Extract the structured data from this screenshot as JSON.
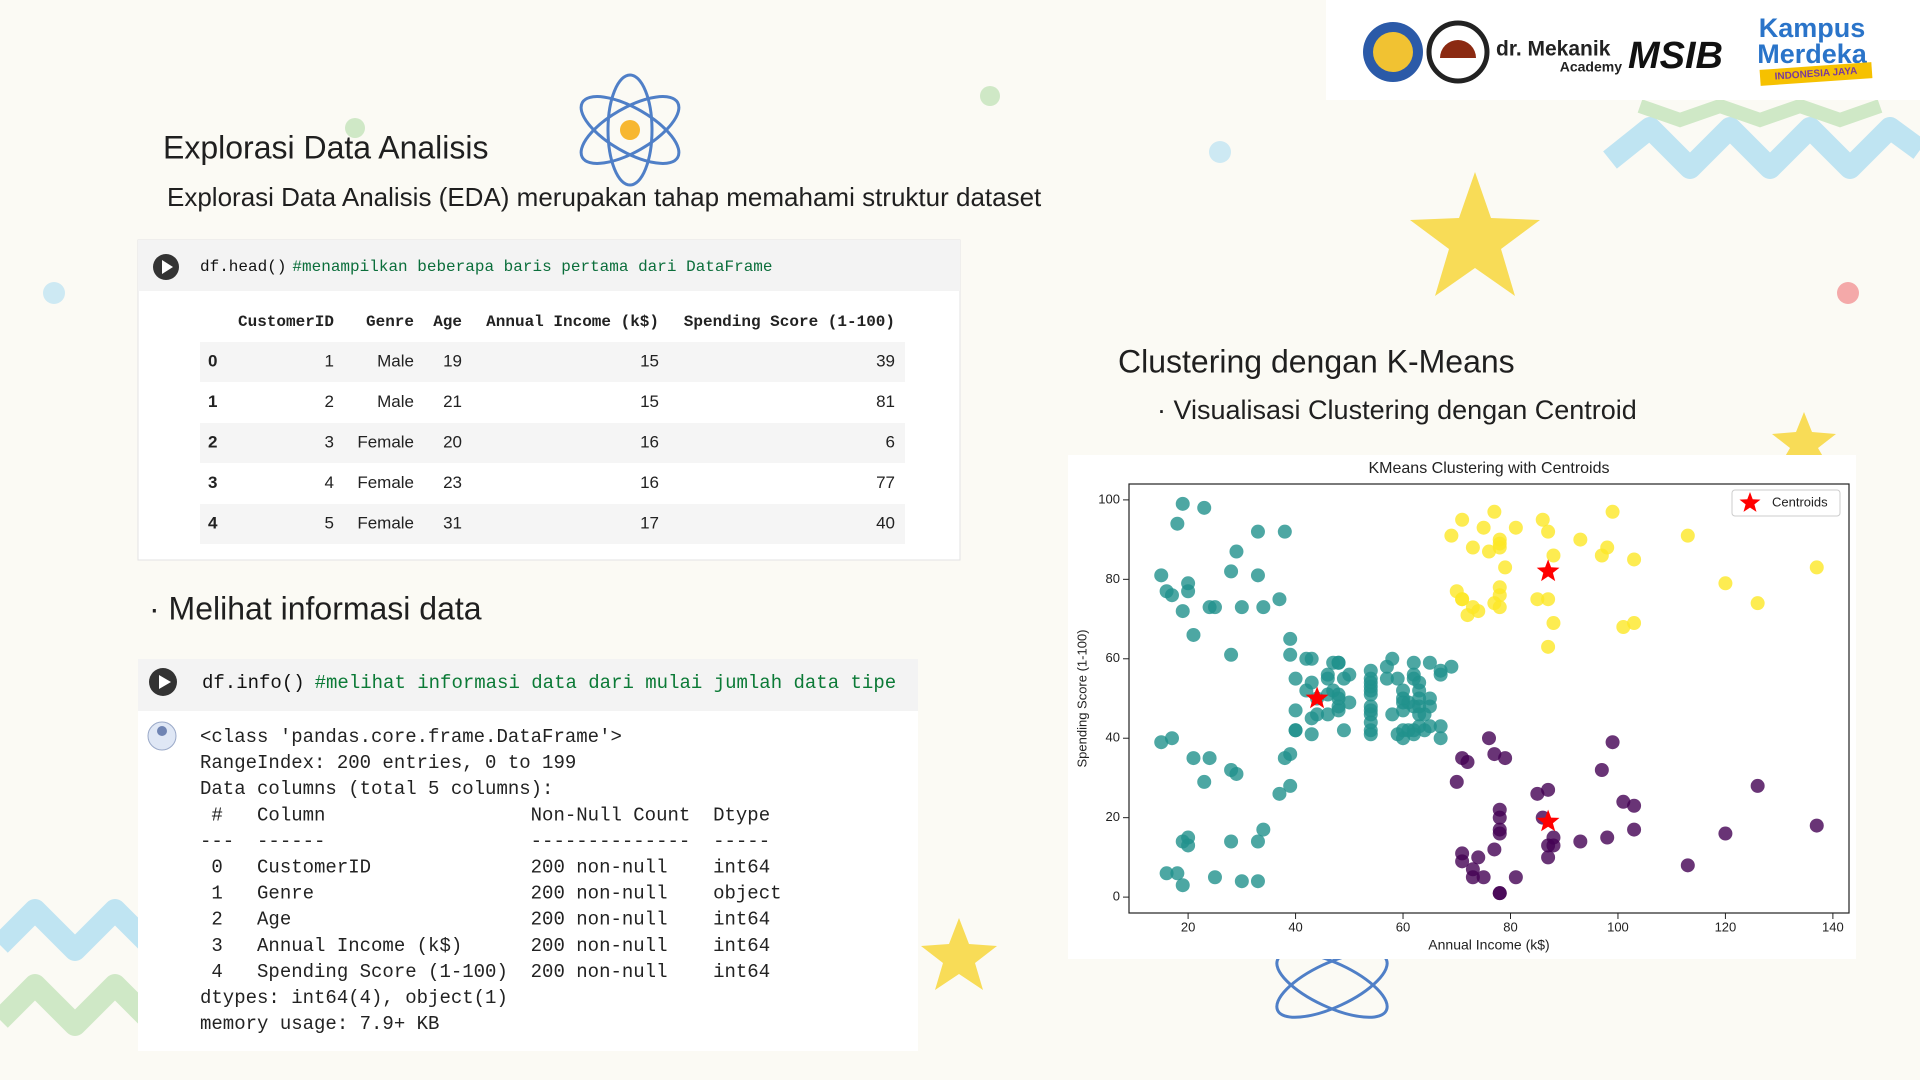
{
  "logos": {
    "brand": "dr. Mekanik",
    "brand_sub": "Academy",
    "msib": "MSIB",
    "kampus": "Kampus",
    "merdeka": "Merdeka",
    "tagline": "INDONESIA JAYA"
  },
  "eda": {
    "title": "Explorasi Data Analisis",
    "subtitle": "Explorasi Data Analisis (EDA) merupakan tahap memahami struktur dataset",
    "cell1": {
      "code": "df.head()",
      "comment": "#menampilkan beberapa baris pertama dari DataFrame"
    },
    "table": {
      "columns": [
        "CustomerID",
        "Genre",
        "Age",
        "Annual Income (k$)",
        "Spending Score (1-100)"
      ],
      "rows": [
        [
          0,
          1,
          "Male",
          19,
          15,
          39
        ],
        [
          1,
          2,
          "Male",
          21,
          15,
          81
        ],
        [
          2,
          3,
          "Female",
          20,
          16,
          6
        ],
        [
          3,
          4,
          "Female",
          23,
          16,
          77
        ],
        [
          4,
          5,
          "Female",
          31,
          17,
          40
        ]
      ]
    },
    "info_heading": "· Melihat informasi data",
    "cell2": {
      "code": "df.info()",
      "comment": "#melihat informasi data dari mulai jumlah data tipe",
      "output": [
        "<class 'pandas.core.frame.DataFrame'>",
        "RangeIndex: 200 entries, 0 to 199",
        "Data columns (total 5 columns):",
        " #   Column                  Non-Null Count  Dtype",
        "---  ------                  --------------  -----",
        " 0   CustomerID              200 non-null    int64",
        " 1   Genre                   200 non-null    object",
        " 2   Age                     200 non-null    int64",
        " 3   Annual Income (k$)      200 non-null    int64",
        " 4   Spending Score (1-100)  200 non-null    int64",
        "dtypes: int64(4), object(1)",
        "memory usage: 7.9+ KB"
      ]
    }
  },
  "clustering": {
    "title": "Clustering dengan K-Means",
    "subtitle": "· Visualisasi Clustering dengan Centroid"
  },
  "chart_data": {
    "type": "scatter",
    "title": "KMeans Clustering with Centroids",
    "x_label": "Annual Income (k$)",
    "y_label": "Spending Score (1-100)",
    "xlim": [
      9,
      143
    ],
    "ylim": [
      -4,
      104
    ],
    "xticks": [
      20,
      40,
      60,
      80,
      100,
      120,
      140
    ],
    "yticks": [
      0,
      20,
      40,
      60,
      80,
      100
    ],
    "legend": "upper right",
    "series": [
      {
        "color": "#21918c",
        "marker": "circle",
        "x": [
          15,
          15,
          16,
          16,
          17,
          17,
          18,
          18,
          19,
          19,
          19,
          19,
          20,
          20,
          20,
          20,
          21,
          21,
          23,
          23,
          24,
          24,
          25,
          25,
          28,
          28,
          28,
          28,
          29,
          29,
          30,
          30,
          33,
          33,
          33,
          33,
          34,
          34,
          37,
          37,
          38,
          38,
          39,
          39,
          39,
          39,
          40,
          40,
          40,
          40,
          42,
          42,
          43,
          43,
          43,
          43,
          44,
          44,
          46,
          46,
          46,
          46,
          47,
          47,
          48,
          48,
          48,
          48,
          48,
          48,
          49,
          49,
          50,
          50,
          54,
          54,
          54,
          54,
          54,
          54,
          54,
          54,
          54,
          54,
          54,
          54,
          57,
          57,
          58,
          58,
          59,
          59,
          60,
          60,
          60,
          60,
          60,
          60,
          61,
          61,
          62,
          62,
          62,
          62,
          62,
          62,
          63,
          63,
          63,
          63,
          63,
          63,
          64,
          64,
          65,
          65,
          65,
          65,
          67,
          67,
          67,
          67,
          69
        ],
        "y": [
          39,
          81,
          6,
          77,
          40,
          76,
          6,
          94,
          3,
          72,
          14,
          99,
          15,
          77,
          13,
          79,
          35,
          66,
          29,
          98,
          35,
          73,
          5,
          73,
          14,
          82,
          32,
          61,
          31,
          87,
          4,
          73,
          4,
          92,
          14,
          81,
          17,
          73,
          26,
          75,
          35,
          92,
          36,
          61,
          28,
          65,
          55,
          47,
          42,
          42,
          52,
          60,
          54,
          60,
          45,
          41,
          50,
          46,
          51,
          46,
          56,
          55,
          52,
          59,
          51,
          59,
          50,
          48,
          59,
          47,
          55,
          42,
          49,
          56,
          47,
          54,
          53,
          48,
          52,
          42,
          51,
          55,
          41,
          44,
          57,
          46,
          58,
          55,
          60,
          46,
          55,
          41,
          49,
          40,
          42,
          52,
          47,
          50,
          42,
          49,
          41,
          48,
          59,
          55,
          56,
          42,
          50,
          46,
          43,
          48,
          52,
          54,
          42,
          46,
          48,
          50,
          43,
          59,
          43,
          57,
          56,
          40,
          58
        ]
      },
      {
        "color": "#fde725",
        "marker": "circle",
        "x": [
          69,
          70,
          71,
          71,
          71,
          72,
          73,
          73,
          74,
          75,
          76,
          77,
          77,
          78,
          78,
          78,
          78,
          78,
          78,
          79,
          81,
          85,
          86,
          87,
          87,
          87,
          88,
          88,
          93,
          97,
          98,
          99,
          101,
          103,
          103,
          113,
          120,
          126,
          137
        ],
        "y": [
          91,
          77,
          95,
          75,
          75,
          71,
          88,
          73,
          72,
          93,
          87,
          97,
          74,
          90,
          88,
          76,
          89,
          78,
          73,
          83,
          93,
          75,
          95,
          63,
          75,
          92,
          86,
          69,
          90,
          86,
          88,
          97,
          68,
          85,
          69,
          91,
          79,
          74,
          83
        ]
      },
      {
        "color": "#440154",
        "marker": "circle",
        "x": [
          70,
          71,
          71,
          71,
          72,
          73,
          73,
          74,
          75,
          76,
          77,
          77,
          78,
          78,
          78,
          78,
          78,
          78,
          79,
          81,
          85,
          86,
          87,
          87,
          87,
          88,
          88,
          93,
          97,
          98,
          99,
          101,
          103,
          103,
          113,
          120,
          126,
          137
        ],
        "y": [
          29,
          35,
          11,
          9,
          34,
          5,
          7,
          10,
          5,
          40,
          12,
          36,
          22,
          17,
          20,
          16,
          1,
          1,
          35,
          5,
          26,
          20,
          27,
          13,
          10,
          13,
          15,
          14,
          32,
          15,
          39,
          24,
          17,
          23,
          8,
          16,
          28,
          18
        ]
      },
      {
        "name": "Centroids",
        "color": "#ff0000",
        "marker": "star",
        "x": [
          44,
          87,
          87
        ],
        "y": [
          50,
          82,
          19
        ]
      }
    ]
  }
}
